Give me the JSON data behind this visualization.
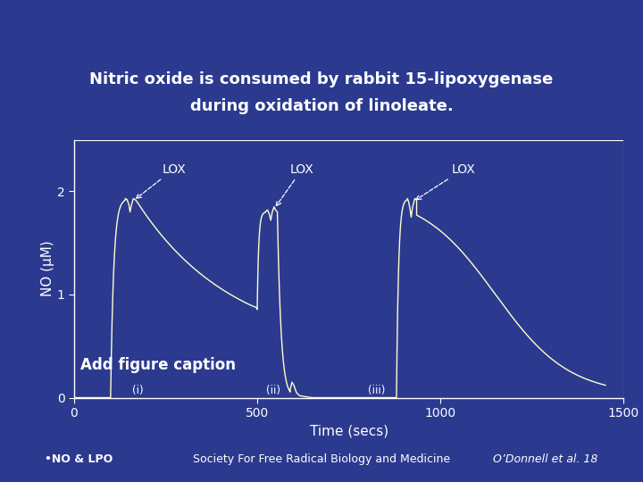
{
  "title_line1": "Nitric oxide is consumed by rabbit 15-lipoxygenase",
  "title_line2": "during oxidation of linoleate.",
  "xlabel": "Time (secs)",
  "ylabel": "NO (μM)",
  "xlim": [
    0,
    1500
  ],
  "ylim": [
    0,
    2.5
  ],
  "yticks": [
    0,
    1,
    2
  ],
  "xticks": [
    0,
    500,
    1000,
    1500
  ],
  "bg_color": "#2B3A8F",
  "line_color": "#FFFFCC",
  "text_color": "white",
  "axis_color": "white",
  "footer_left": "•NO & LPO",
  "footer_center": "Society For Free Radical Biology and Medicine",
  "footer_right": "O’Donnell et al. 18",
  "caption_text": "Add figure caption",
  "caption_bg": "#CC0000",
  "lox_label": "LOX",
  "label_i": "(i)",
  "label_ii": "(ii)",
  "label_iii": "(iii)"
}
